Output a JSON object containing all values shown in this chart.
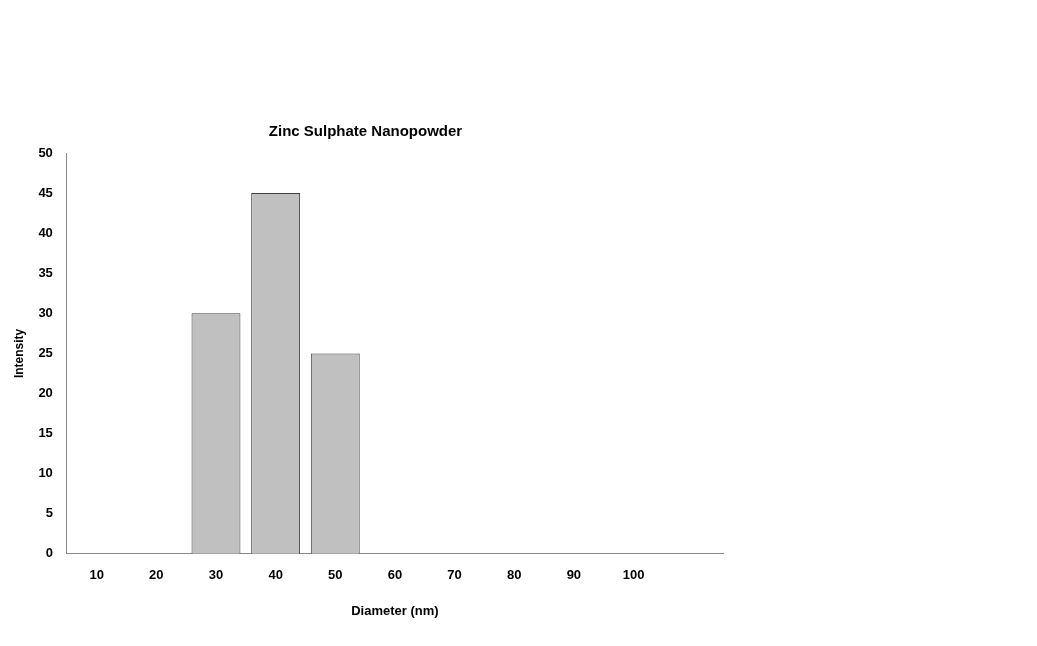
{
  "chart_data": {
    "type": "bar",
    "title": "Zinc Sulphate Nanopowder",
    "xlabel": "Diameter (nm)",
    "ylabel": "Intensity",
    "categories": [
      "10",
      "20",
      "30",
      "40",
      "50",
      "60",
      "70",
      "80",
      "90",
      "100",
      null
    ],
    "values": [
      0,
      0,
      30,
      45,
      25,
      0,
      0,
      0,
      0,
      0,
      0
    ],
    "color": "#c0c0c0",
    "ylim": [
      0,
      50
    ],
    "yticks": [
      0,
      5,
      10,
      15,
      20,
      25,
      30,
      35,
      40,
      45,
      50
    ],
    "grid": false,
    "legend": false
  }
}
